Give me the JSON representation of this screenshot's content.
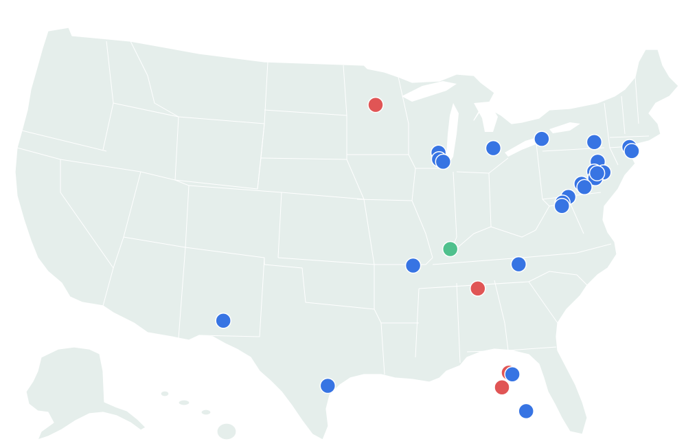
{
  "legend_colors": {
    "blue": "#3774e3",
    "red": "#e05555",
    "green": "#4fc08d"
  },
  "markers": [
    {
      "id": "san-antonio-area",
      "lon": -106.45,
      "lat": 31.78,
      "color": "blue"
    },
    {
      "id": "south-texas",
      "lon": -97.4,
      "lat": 27.8,
      "color": "blue"
    },
    {
      "id": "minnesota",
      "lon": -93.25,
      "lat": 44.98,
      "color": "red"
    },
    {
      "id": "chicago-1",
      "lon": -87.8,
      "lat": 42.05,
      "color": "blue"
    },
    {
      "id": "chicago-2",
      "lon": -87.75,
      "lat": 41.65,
      "color": "blue"
    },
    {
      "id": "chicago-3",
      "lon": -87.4,
      "lat": 41.5,
      "color": "blue"
    },
    {
      "id": "detroit",
      "lon": -83.05,
      "lat": 42.33,
      "color": "blue"
    },
    {
      "id": "buffalo",
      "lon": -78.85,
      "lat": 42.9,
      "color": "blue"
    },
    {
      "id": "albany",
      "lon": -74.3,
      "lat": 42.7,
      "color": "blue"
    },
    {
      "id": "boston-1",
      "lon": -71.25,
      "lat": 42.4,
      "color": "blue"
    },
    {
      "id": "boston-2",
      "lon": -71.05,
      "lat": 42.15,
      "color": "blue"
    },
    {
      "id": "nyc-north",
      "lon": -74.0,
      "lat": 41.5,
      "color": "blue"
    },
    {
      "id": "nyc-1",
      "lon": -74.3,
      "lat": 40.9,
      "color": "blue"
    },
    {
      "id": "nyc-2",
      "lon": -74.0,
      "lat": 40.7,
      "color": "blue"
    },
    {
      "id": "nyc-3",
      "lon": -73.5,
      "lat": 40.85,
      "color": "blue"
    },
    {
      "id": "nyc-4",
      "lon": -74.2,
      "lat": 40.5,
      "color": "blue"
    },
    {
      "id": "nyc-5",
      "lon": -74.05,
      "lat": 40.8,
      "color": "blue"
    },
    {
      "id": "philadelphia-1",
      "lon": -75.4,
      "lat": 40.15,
      "color": "blue"
    },
    {
      "id": "philadelphia-2",
      "lon": -75.15,
      "lat": 39.95,
      "color": "blue"
    },
    {
      "id": "baltimore",
      "lon": -76.55,
      "lat": 39.35,
      "color": "blue"
    },
    {
      "id": "washington-1",
      "lon": -77.05,
      "lat": 39.0,
      "color": "blue"
    },
    {
      "id": "washington-2",
      "lon": -77.1,
      "lat": 38.8,
      "color": "blue"
    },
    {
      "id": "memphis",
      "lon": -90.0,
      "lat": 35.15,
      "color": "blue"
    },
    {
      "id": "nashville",
      "lon": -86.78,
      "lat": 36.16,
      "color": "green"
    },
    {
      "id": "charlotte",
      "lon": -80.85,
      "lat": 35.23,
      "color": "blue"
    },
    {
      "id": "atlanta",
      "lon": -84.39,
      "lat": 33.75,
      "color": "red"
    },
    {
      "id": "orlando-red",
      "lon": -81.7,
      "lat": 28.6,
      "color": "red"
    },
    {
      "id": "orlando-blue",
      "lon": -81.4,
      "lat": 28.5,
      "color": "blue"
    },
    {
      "id": "tampa",
      "lon": -82.3,
      "lat": 27.7,
      "color": "red"
    },
    {
      "id": "miami",
      "lon": -80.2,
      "lat": 26.25,
      "color": "blue"
    }
  ]
}
